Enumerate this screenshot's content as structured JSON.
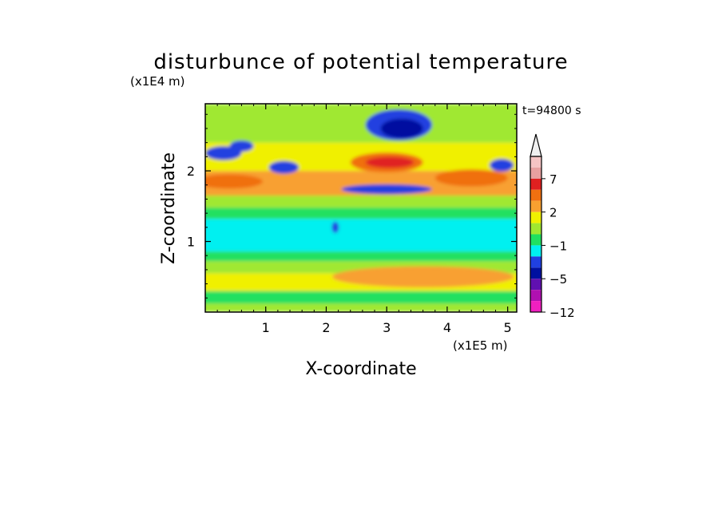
{
  "chart_data": {
    "type": "heatmap",
    "title": "disturbunce of potential temperature",
    "xlabel": "X-coordinate",
    "ylabel": "Z-coordinate",
    "x_unit": "(x1E5 m)",
    "y_unit": "(x1E4 m)",
    "time_label": "t=94800 s",
    "xlim": [
      0,
      5.15
    ],
    "ylim": [
      0,
      2.95
    ],
    "x_ticks": [
      "1",
      "2",
      "3",
      "4",
      "5"
    ],
    "y_ticks": [
      "1",
      "2"
    ],
    "colorbar_labels": [
      "7",
      "2",
      "−1",
      "−5",
      "−12"
    ],
    "colorbar_label_values": [
      7,
      2,
      -1,
      -5,
      -12
    ],
    "colorbar_levels": [
      {
        "level": 8,
        "color": "#f5c4c4"
      },
      {
        "level": 7,
        "color": "#e8a0a0"
      },
      {
        "level": 5,
        "color": "#e02020"
      },
      {
        "level": 3,
        "color": "#f07010"
      },
      {
        "level": 2,
        "color": "#f8a030"
      },
      {
        "level": 1,
        "color": "#f0f000"
      },
      {
        "level": 0,
        "color": "#a0e830"
      },
      {
        "level": -1,
        "color": "#20e060"
      },
      {
        "level": -2,
        "color": "#00f0f0"
      },
      {
        "level": -3,
        "color": "#2040e0"
      },
      {
        "level": -5,
        "color": "#0010a0"
      },
      {
        "level": -7,
        "color": "#6010b0"
      },
      {
        "level": -9,
        "color": "#b010b0"
      },
      {
        "level": -12,
        "color": "#f020c0"
      }
    ],
    "arrow_color": "#f0f0f0",
    "bands": [
      {
        "z": [
          0.0,
          0.12
        ],
        "value": 0
      },
      {
        "z": [
          0.12,
          0.3
        ],
        "value": -1
      },
      {
        "z": [
          0.3,
          0.55
        ],
        "value": 1
      },
      {
        "z": [
          0.55,
          0.72
        ],
        "value": 0
      },
      {
        "z": [
          0.72,
          0.86
        ],
        "value": -1
      },
      {
        "z": [
          0.86,
          1.32
        ],
        "value": -2
      },
      {
        "z": [
          1.32,
          1.48
        ],
        "value": -1
      },
      {
        "z": [
          1.48,
          1.65
        ],
        "value": 0
      },
      {
        "z": [
          1.65,
          2.0
        ],
        "value": 2
      },
      {
        "z": [
          2.0,
          2.4
        ],
        "value": 1
      },
      {
        "z": [
          2.4,
          2.95
        ],
        "value": 0
      }
    ],
    "features": [
      {
        "x": 3.0,
        "z": 2.12,
        "rx": 0.6,
        "rz": 0.14,
        "value": 3
      },
      {
        "x": 3.05,
        "z": 2.12,
        "rx": 0.4,
        "rz": 0.08,
        "value": 5
      },
      {
        "x": 3.2,
        "z": 2.65,
        "rx": 0.55,
        "rz": 0.22,
        "value": -3
      },
      {
        "x": 3.25,
        "z": 2.6,
        "rx": 0.35,
        "rz": 0.14,
        "value": -5
      },
      {
        "x": 3.0,
        "z": 1.74,
        "rx": 0.75,
        "rz": 0.07,
        "value": -3
      },
      {
        "x": 0.3,
        "z": 2.25,
        "rx": 0.3,
        "rz": 0.1,
        "value": -3
      },
      {
        "x": 0.6,
        "z": 2.35,
        "rx": 0.2,
        "rz": 0.08,
        "value": -3
      },
      {
        "x": 1.3,
        "z": 2.05,
        "rx": 0.25,
        "rz": 0.09,
        "value": -3
      },
      {
        "x": 4.9,
        "z": 2.08,
        "rx": 0.2,
        "rz": 0.09,
        "value": -3
      },
      {
        "x": 0.4,
        "z": 1.85,
        "rx": 0.55,
        "rz": 0.1,
        "value": 3
      },
      {
        "x": 4.4,
        "z": 1.9,
        "rx": 0.6,
        "rz": 0.12,
        "value": 3
      },
      {
        "x": 3.6,
        "z": 0.5,
        "rx": 1.5,
        "rz": 0.15,
        "value": 2
      },
      {
        "x": 2.15,
        "z": 1.2,
        "rx": 0.06,
        "rz": 0.08,
        "value": -3
      }
    ]
  }
}
